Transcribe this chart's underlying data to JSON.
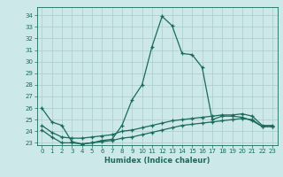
{
  "title": "",
  "xlabel": "Humidex (Indice chaleur)",
  "bg_color": "#cce8e8",
  "grid_color": "#aacccc",
  "line_color": "#1a6b5a",
  "xlim": [
    -0.5,
    23.5
  ],
  "ylim": [
    22.8,
    34.7
  ],
  "yticks": [
    23,
    24,
    25,
    26,
    27,
    28,
    29,
    30,
    31,
    32,
    33,
    34
  ],
  "xticks": [
    0,
    1,
    2,
    3,
    4,
    5,
    6,
    7,
    8,
    9,
    10,
    11,
    12,
    13,
    14,
    15,
    16,
    17,
    18,
    19,
    20,
    21,
    22,
    23
  ],
  "series1": [
    26.0,
    24.8,
    24.5,
    23.1,
    22.9,
    23.0,
    23.2,
    23.3,
    24.5,
    26.7,
    28.0,
    31.3,
    33.9,
    33.1,
    30.7,
    30.6,
    29.5,
    25.0,
    25.3,
    25.3,
    25.2,
    24.9,
    24.4,
    24.4
  ],
  "series2": [
    24.1,
    23.5,
    23.0,
    23.0,
    22.9,
    23.0,
    23.1,
    23.2,
    23.4,
    23.5,
    23.7,
    23.9,
    24.1,
    24.3,
    24.5,
    24.6,
    24.7,
    24.8,
    24.9,
    25.0,
    25.1,
    25.0,
    24.4,
    24.4
  ],
  "series3": [
    24.5,
    23.9,
    23.5,
    23.4,
    23.4,
    23.5,
    23.6,
    23.7,
    24.0,
    24.1,
    24.3,
    24.5,
    24.7,
    24.9,
    25.0,
    25.1,
    25.2,
    25.3,
    25.4,
    25.4,
    25.5,
    25.3,
    24.5,
    24.5
  ]
}
